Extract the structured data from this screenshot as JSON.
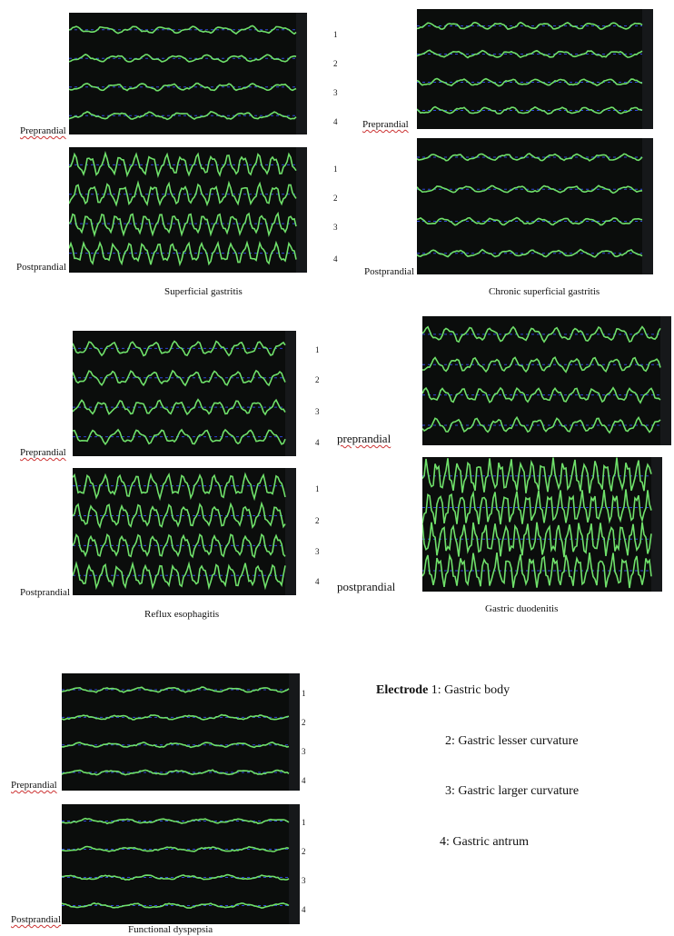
{
  "figure": {
    "panels": [
      {
        "id": "sg",
        "caption": "Superficial gastritis",
        "pre": "Preprandial",
        "post": "Postprandial",
        "channels": [
          "1",
          "2",
          "3",
          "4"
        ]
      },
      {
        "id": "csg",
        "caption": "Chronic superficial gastritis",
        "pre": "Preprandial",
        "post": "Postprandial",
        "channels": [
          "1",
          "2",
          "3",
          "4"
        ]
      },
      {
        "id": "re",
        "caption": "Reflux esophagitis",
        "pre": "Preprandial",
        "post": "Postprandial",
        "channels": [
          "1",
          "2",
          "3",
          "4"
        ]
      },
      {
        "id": "gd",
        "caption": "Gastric duodenitis",
        "pre": "preprandial",
        "post": "postprandial",
        "channels": []
      },
      {
        "id": "fd",
        "caption": "Functional dyspepsia",
        "pre": "Preprandial",
        "post": "Postprandial",
        "channels": [
          "1",
          "2",
          "3",
          "4"
        ]
      }
    ],
    "legend": {
      "title": "Electrode",
      "items": [
        "1: Gastric body",
        "2: Gastric lesser curvature",
        "3: Gastric larger curvature",
        "4: Gastric antrum"
      ]
    }
  }
}
